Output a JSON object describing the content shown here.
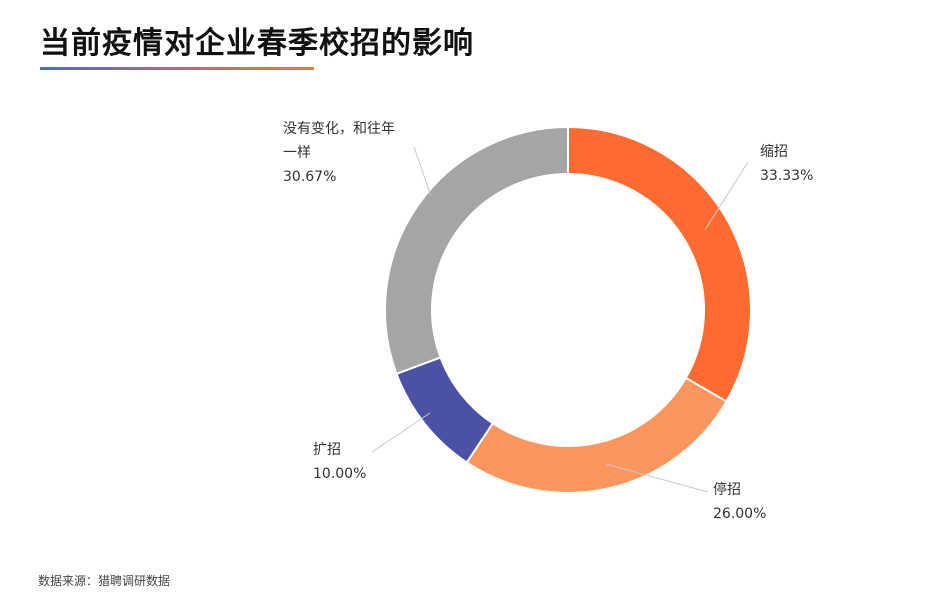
{
  "title": "当前疫情对企业春季校招的影响",
  "source": "数据来源：猎聘调研数据",
  "chart_data": {
    "type": "pie",
    "subtype": "donut",
    "title": "当前疫情对企业春季校招的影响",
    "slices": [
      {
        "name": "缩招",
        "value": 33.33,
        "label": "33.33%",
        "color": "#fd6b31"
      },
      {
        "name": "停招",
        "value": 26.0,
        "label": "26.00%",
        "color": "#fd955e"
      },
      {
        "name": "扩招",
        "value": 10.0,
        "label": "10.00%",
        "color": "#4b52a6"
      },
      {
        "name_lines": [
          "没有变化，和往年",
          "一样"
        ],
        "value": 30.67,
        "label": "30.67%",
        "color": "#a5a5a5"
      }
    ],
    "start_angle": "12 o'clock",
    "direction": "clockwise"
  }
}
